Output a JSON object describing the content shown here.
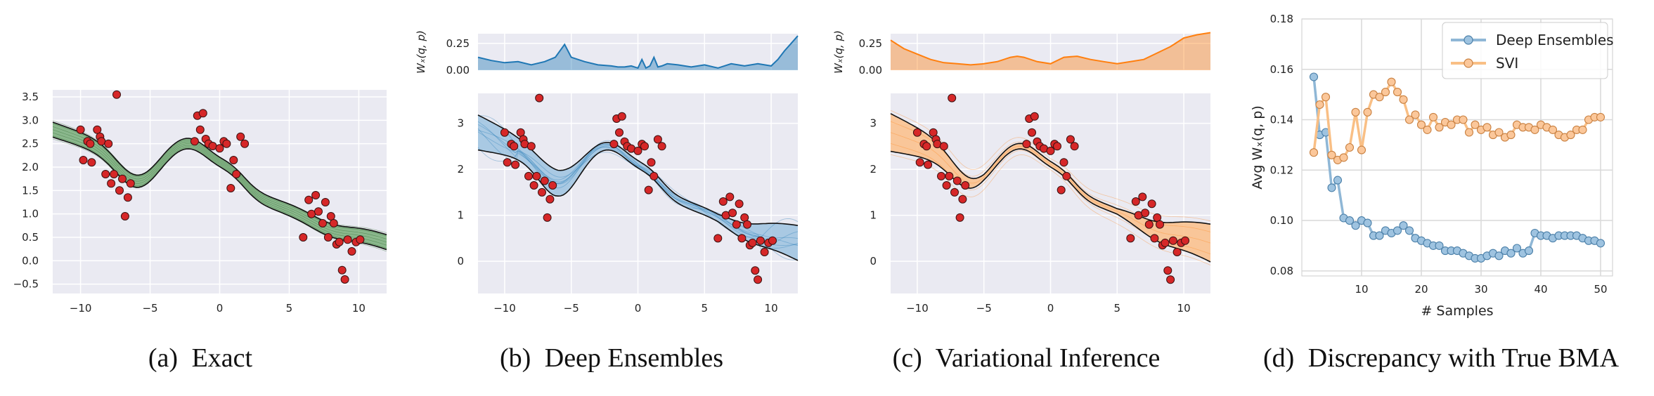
{
  "figure": {
    "captions": [
      {
        "letter": "(a)",
        "text": "Exact"
      },
      {
        "letter": "(b)",
        "text": "Deep Ensembles"
      },
      {
        "letter": "(c)",
        "text": "Variational Inference"
      },
      {
        "letter": "(d)",
        "text": "Discrepancy with True BMA"
      }
    ]
  },
  "colors": {
    "exact": "#3a7d3a",
    "exact_band": "#6aa56a",
    "ensembles": "#1f77b4",
    "ensembles_band": "#9ec3e0",
    "vi": "#ff7f0e",
    "vi_band": "#fcc08a",
    "points": "#d62728",
    "panel_bg": "#eaeaf2",
    "grid": "#ffffff",
    "de_line": "#8fb7d6",
    "svi_line": "#f9bf85"
  },
  "chart_data": [
    {
      "id": "scatter-data",
      "type": "scatter",
      "points": [
        [
          -10,
          2.8
        ],
        [
          -9.8,
          2.15
        ],
        [
          -9.5,
          2.55
        ],
        [
          -9.3,
          2.5
        ],
        [
          -9.2,
          2.1
        ],
        [
          -8.8,
          2.8
        ],
        [
          -8.6,
          2.65
        ],
        [
          -8.5,
          2.55
        ],
        [
          -8.2,
          1.85
        ],
        [
          -8.0,
          2.5
        ],
        [
          -7.8,
          1.65
        ],
        [
          -7.6,
          1.85
        ],
        [
          -7.4,
          3.55
        ],
        [
          -7.2,
          1.5
        ],
        [
          -7.0,
          1.75
        ],
        [
          -6.8,
          0.95
        ],
        [
          -6.6,
          1.35
        ],
        [
          -6.4,
          1.65
        ],
        [
          -1.8,
          2.55
        ],
        [
          -1.6,
          3.1
        ],
        [
          -1.4,
          2.8
        ],
        [
          -1.2,
          3.15
        ],
        [
          -1.0,
          2.6
        ],
        [
          -0.8,
          2.5
        ],
        [
          -0.5,
          2.45
        ],
        [
          0,
          2.4
        ],
        [
          0.3,
          2.55
        ],
        [
          0.5,
          2.5
        ],
        [
          0.8,
          1.55
        ],
        [
          1.0,
          2.15
        ],
        [
          1.2,
          1.85
        ],
        [
          1.5,
          2.65
        ],
        [
          1.8,
          2.5
        ],
        [
          6.0,
          0.5
        ],
        [
          6.4,
          1.3
        ],
        [
          6.6,
          1.0
        ],
        [
          6.9,
          1.4
        ],
        [
          7.1,
          1.05
        ],
        [
          7.4,
          0.8
        ],
        [
          7.6,
          1.25
        ],
        [
          7.8,
          0.5
        ],
        [
          8.0,
          0.95
        ],
        [
          8.2,
          0.8
        ],
        [
          8.4,
          0.35
        ],
        [
          8.6,
          0.4
        ],
        [
          8.8,
          -0.2
        ],
        [
          9.0,
          -0.4
        ],
        [
          9.2,
          0.45
        ],
        [
          9.5,
          0.2
        ],
        [
          9.8,
          0.4
        ],
        [
          10.1,
          0.45
        ]
      ]
    },
    {
      "id": "a",
      "type": "line",
      "title": "(a) Exact",
      "xlim": [
        -12,
        12
      ],
      "ylim": [
        -0.7,
        3.65
      ],
      "xticks": [
        -10,
        -5,
        0,
        5,
        10
      ],
      "yticks": [
        -0.5,
        0.0,
        0.5,
        1.0,
        1.5,
        2.0,
        2.5,
        3.0,
        3.5
      ],
      "xtick_labels": [
        "−10",
        "−5",
        "0",
        "5",
        "10"
      ],
      "ytick_labels": [
        "−0.5",
        "0.0",
        "0.5",
        "1.0",
        "1.5",
        "2.0",
        "2.5",
        "3.0",
        "3.5"
      ],
      "band_halfwidth": 0.12
    },
    {
      "id": "b",
      "type": "line",
      "title": "(b) Deep Ensembles",
      "xlim": [
        -12,
        12
      ],
      "ylim": [
        -0.7,
        3.65
      ],
      "xticks": [
        -10,
        -5,
        0,
        5,
        10
      ],
      "yticks": [
        0,
        1,
        2,
        3
      ],
      "xtick_labels": [
        "−10",
        "−5",
        "0",
        "5",
        "10"
      ],
      "ytick_labels": [
        "0",
        "1",
        "2",
        "3"
      ],
      "ensemble_offsets": [
        -0.35,
        -0.22,
        -0.1,
        0.05,
        0.15,
        0.28,
        0.4
      ],
      "wasserstein": {
        "ylabel": "Wₓ(q, p)",
        "ylim": [
          0,
          0.34
        ],
        "yticks": [
          0,
          0.25
        ],
        "ytick_labels": [
          "0.00",
          "0.25"
        ],
        "x": [
          -12,
          -11,
          -10,
          -9,
          -8,
          -7,
          -6.2,
          -5.5,
          -5,
          -4,
          -3,
          -2,
          -1.5,
          -1,
          -0.5,
          0,
          0.3,
          0.6,
          0.9,
          1.2,
          1.5,
          1.8,
          2.2,
          3,
          4,
          5,
          6,
          7,
          8,
          9,
          10,
          10.5,
          11,
          11.5,
          12
        ],
        "y": [
          0.12,
          0.09,
          0.07,
          0.08,
          0.05,
          0.08,
          0.12,
          0.24,
          0.12,
          0.08,
          0.05,
          0.04,
          0.03,
          0.03,
          0.04,
          0.02,
          0.1,
          0.02,
          0.04,
          0.12,
          0.03,
          0.04,
          0.06,
          0.05,
          0.03,
          0.05,
          0.02,
          0.06,
          0.04,
          0.06,
          0.04,
          0.1,
          0.18,
          0.25,
          0.32
        ]
      }
    },
    {
      "id": "c",
      "type": "line",
      "title": "(c) Variational Inference",
      "xlim": [
        -12,
        12
      ],
      "ylim": [
        -0.7,
        3.65
      ],
      "xticks": [
        -10,
        -5,
        0,
        5,
        10
      ],
      "yticks": [
        0,
        1,
        2,
        3
      ],
      "xtick_labels": [
        "−10",
        "−5",
        "0",
        "5",
        "10"
      ],
      "ytick_labels": [
        "0",
        "1",
        "2",
        "3"
      ],
      "wasserstein": {
        "ylabel": "Wₓ(q, p)",
        "ylim": [
          0,
          0.34
        ],
        "yticks": [
          0,
          0.25
        ],
        "ytick_labels": [
          "0.00",
          "0.25"
        ],
        "x": [
          -12,
          -11,
          -10,
          -9,
          -8,
          -7,
          -6,
          -5,
          -4,
          -3,
          -2.5,
          -2,
          -1,
          0,
          1,
          2,
          3,
          4,
          5,
          6,
          7,
          8,
          9,
          10,
          11,
          12
        ],
        "y": [
          0.28,
          0.2,
          0.15,
          0.1,
          0.07,
          0.06,
          0.05,
          0.06,
          0.08,
          0.12,
          0.13,
          0.12,
          0.08,
          0.06,
          0.12,
          0.13,
          0.1,
          0.08,
          0.06,
          0.08,
          0.1,
          0.16,
          0.22,
          0.3,
          0.33,
          0.35
        ]
      }
    },
    {
      "id": "d",
      "type": "line",
      "title": "(d) Discrepancy with True BMA",
      "xlabel": "# Samples",
      "ylabel": "Avg Wₓ(q, p)",
      "xlim": [
        0,
        52
      ],
      "ylim": [
        0.078,
        0.18
      ],
      "xticks": [
        10,
        20,
        30,
        40,
        50
      ],
      "yticks": [
        0.08,
        0.1,
        0.12,
        0.14,
        0.16,
        0.18
      ],
      "xtick_labels": [
        "10",
        "20",
        "30",
        "40",
        "50"
      ],
      "ytick_labels": [
        "0.08",
        "0.10",
        "0.12",
        "0.14",
        "0.16",
        "0.18"
      ],
      "legend_position": "top-right",
      "x": [
        2,
        3,
        4,
        5,
        6,
        7,
        8,
        9,
        10,
        11,
        12,
        13,
        14,
        15,
        16,
        17,
        18,
        19,
        20,
        21,
        22,
        23,
        24,
        25,
        26,
        27,
        28,
        29,
        30,
        31,
        32,
        33,
        34,
        35,
        36,
        37,
        38,
        39,
        40,
        41,
        42,
        43,
        44,
        45,
        46,
        47,
        48,
        49,
        50
      ],
      "series": [
        {
          "name": "Deep Ensembles",
          "values": [
            0.157,
            0.134,
            0.135,
            0.113,
            0.116,
            0.101,
            0.1,
            0.098,
            0.1,
            0.099,
            0.094,
            0.094,
            0.096,
            0.095,
            0.096,
            0.098,
            0.096,
            0.093,
            0.092,
            0.091,
            0.09,
            0.09,
            0.088,
            0.088,
            0.088,
            0.087,
            0.086,
            0.085,
            0.085,
            0.086,
            0.087,
            0.086,
            0.088,
            0.087,
            0.089,
            0.087,
            0.088,
            0.095,
            0.094,
            0.094,
            0.093,
            0.094,
            0.094,
            0.094,
            0.094,
            0.093,
            0.092,
            0.092,
            0.091
          ]
        },
        {
          "name": "SVI",
          "values": [
            0.127,
            0.146,
            0.149,
            0.126,
            0.124,
            0.125,
            0.129,
            0.143,
            0.128,
            0.143,
            0.15,
            0.149,
            0.151,
            0.155,
            0.151,
            0.148,
            0.14,
            0.142,
            0.138,
            0.136,
            0.141,
            0.137,
            0.139,
            0.138,
            0.14,
            0.14,
            0.135,
            0.138,
            0.136,
            0.137,
            0.134,
            0.135,
            0.133,
            0.134,
            0.138,
            0.137,
            0.137,
            0.136,
            0.138,
            0.137,
            0.136,
            0.134,
            0.133,
            0.134,
            0.136,
            0.136,
            0.14,
            0.141,
            0.141
          ]
        }
      ]
    }
  ]
}
